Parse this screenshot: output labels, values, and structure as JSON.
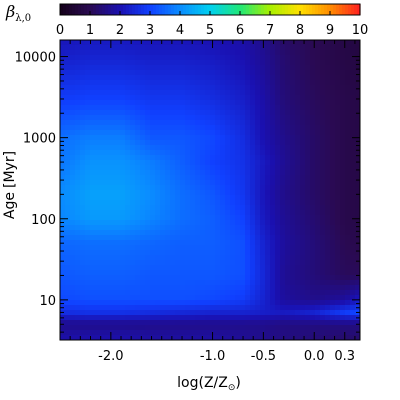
{
  "chart_data": {
    "type": "heatmap",
    "title": "",
    "colorbar": {
      "label_main": "β",
      "label_sub": "λ,0",
      "range": [
        0,
        10
      ],
      "ticks": [
        0,
        1,
        2,
        3,
        4,
        5,
        6,
        7,
        8,
        9,
        10
      ],
      "tick_labels": [
        "0",
        "1",
        "2",
        "3",
        "4",
        "5",
        "6",
        "7",
        "8",
        "9",
        "10"
      ],
      "colormap": [
        "#140019",
        "#2a0a52",
        "#1a10b0",
        "#1040ff",
        "#0a8cff",
        "#00d0f0",
        "#20e878",
        "#a8f000",
        "#ffe000",
        "#ff8c00",
        "#ff2020"
      ]
    },
    "x_axis": {
      "label_main": "log(Z/Z",
      "label_sub": "⊙",
      "label_end": ")",
      "range": [
        -2.5,
        0.45
      ],
      "ticks": [
        -2.0,
        -1.0,
        -0.5,
        0.0,
        0.3
      ],
      "tick_labels": [
        "-2.0",
        "-1.0",
        "-0.5",
        "0.0",
        "0.3"
      ]
    },
    "y_axis": {
      "label_main": "Age",
      "label_bracket": "[Myr]",
      "scale": "log",
      "range": [
        3.2,
        16000
      ],
      "ticks": [
        10,
        100,
        1000,
        10000
      ],
      "tick_labels": [
        "10",
        "100",
        "1000",
        "10000"
      ]
    },
    "x": [
      -2.5,
      -2.2,
      -1.9,
      -1.6,
      -1.3,
      -1.0,
      -0.7,
      -0.5,
      -0.3,
      0.0,
      0.3,
      0.45
    ],
    "y": [
      3.5,
      5,
      7,
      10,
      20,
      50,
      100,
      200,
      500,
      1000,
      3000,
      10000,
      16000
    ],
    "z": [
      [
        1.9,
        1.9,
        1.9,
        1.8,
        1.8,
        1.8,
        1.7,
        1.6,
        1.5,
        1.4,
        1.3,
        1.3
      ],
      [
        1.6,
        1.6,
        1.6,
        1.6,
        1.6,
        1.6,
        1.6,
        1.6,
        1.5,
        1.5,
        1.5,
        1.5
      ],
      [
        2.6,
        2.7,
        2.7,
        2.6,
        2.5,
        2.4,
        2.4,
        2.3,
        2.2,
        2.4,
        2.9,
        3.1
      ],
      [
        3.1,
        3.2,
        3.2,
        3.2,
        3.2,
        3.1,
        2.9,
        2.4,
        1.8,
        1.6,
        1.8,
        2.2
      ],
      [
        3.3,
        3.4,
        3.4,
        3.3,
        3.3,
        3.3,
        3.2,
        2.5,
        1.7,
        1.4,
        1.1,
        1.1
      ],
      [
        3.5,
        3.6,
        3.6,
        3.5,
        3.4,
        3.4,
        3.2,
        2.4,
        1.8,
        1.4,
        1.0,
        0.9
      ],
      [
        3.9,
        4.2,
        4.2,
        3.9,
        3.6,
        3.4,
        3.0,
        2.2,
        1.7,
        1.3,
        0.9,
        0.8
      ],
      [
        4.0,
        4.3,
        4.3,
        4.0,
        3.6,
        3.3,
        2.8,
        2.1,
        1.6,
        1.2,
        0.9,
        0.8
      ],
      [
        3.7,
        4.1,
        4.1,
        3.8,
        3.4,
        3.0,
        2.7,
        2.2,
        1.7,
        1.2,
        0.9,
        0.8
      ],
      [
        3.6,
        3.8,
        3.8,
        3.3,
        3.3,
        3.1,
        2.6,
        2.0,
        1.6,
        1.2,
        0.9,
        0.8
      ],
      [
        2.9,
        3.0,
        3.0,
        2.8,
        2.8,
        2.6,
        2.3,
        1.9,
        1.4,
        1.1,
        0.9,
        0.8
      ],
      [
        2.3,
        2.4,
        2.4,
        2.3,
        2.3,
        2.2,
        2.0,
        1.7,
        1.3,
        1.0,
        0.8,
        0.7
      ],
      [
        2.1,
        2.2,
        2.2,
        2.1,
        2.1,
        2.0,
        1.9,
        1.6,
        1.2,
        1.0,
        0.8,
        0.7
      ]
    ]
  }
}
